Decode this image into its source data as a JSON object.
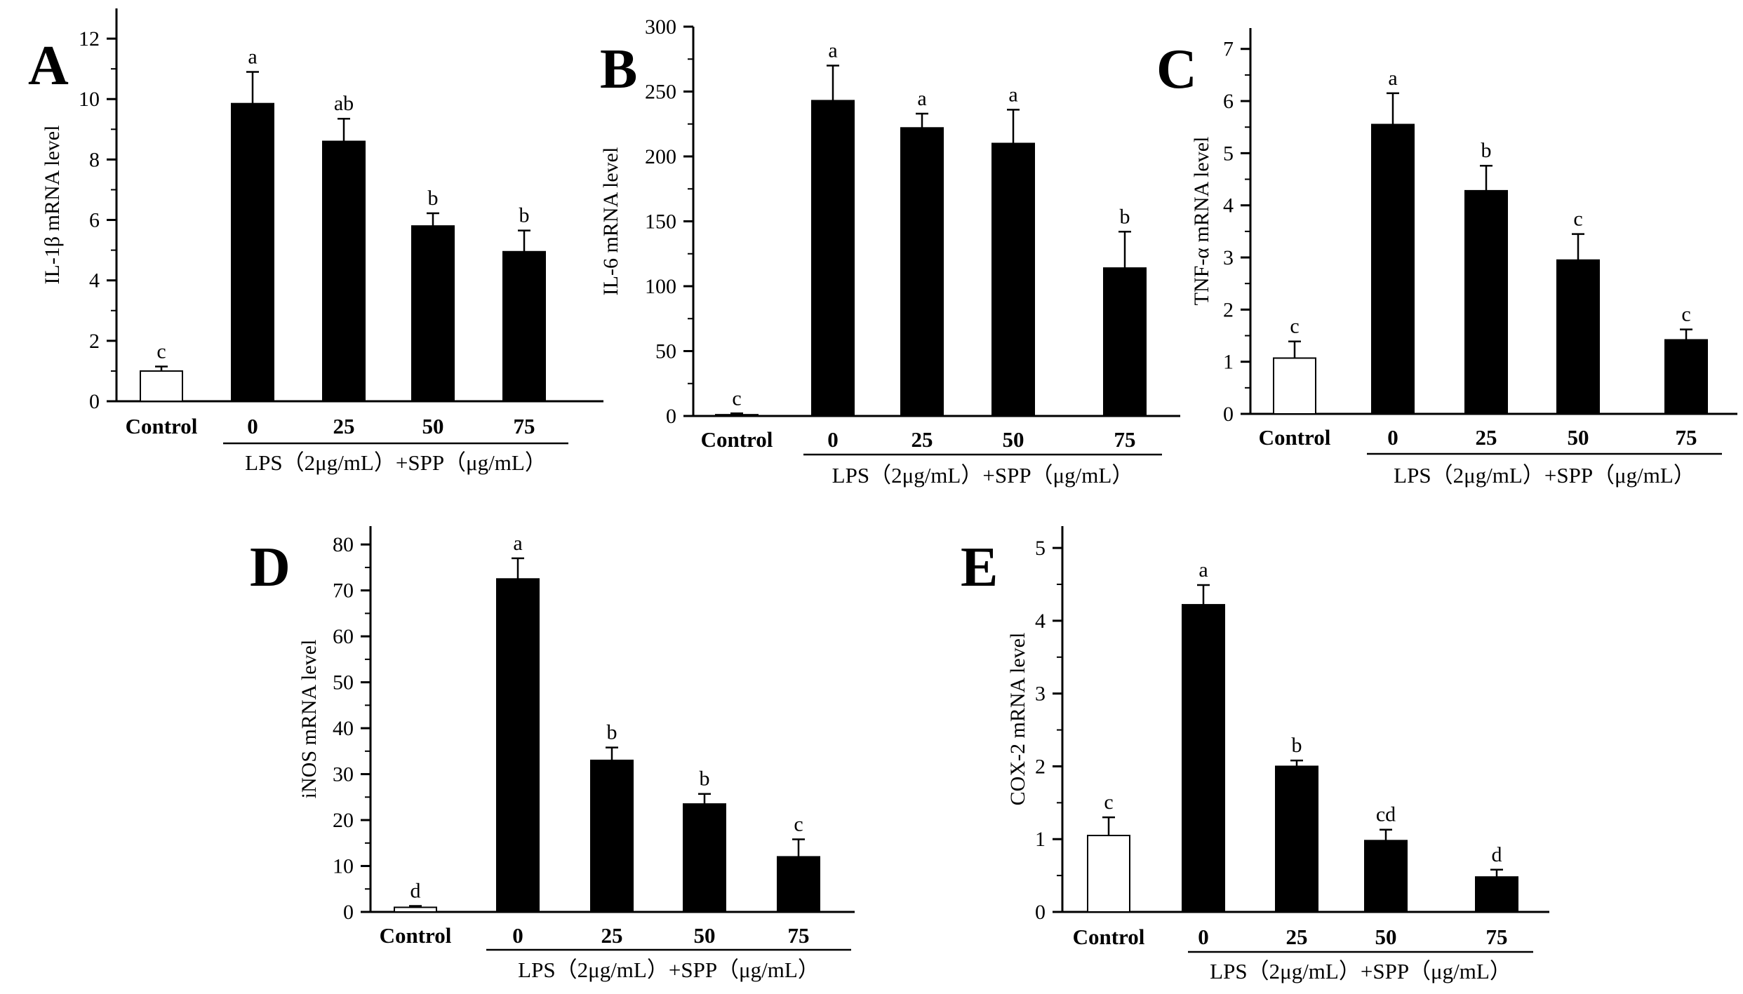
{
  "figure_labels": {
    "group_label": "LPS（2μg/mL）+SPP（μg/mL）"
  },
  "chart_data": [
    {
      "panel": "A",
      "type": "bar",
      "ylabel": "IL-1β mRNA level",
      "xlabel": "",
      "ylim": [
        0,
        13
      ],
      "yticks": [
        0,
        2,
        4,
        6,
        8,
        10,
        12
      ],
      "categories": [
        "Control",
        "0",
        "25",
        "50",
        "75"
      ],
      "values": [
        1.0,
        9.85,
        8.6,
        5.8,
        4.95
      ],
      "errors": [
        0.15,
        1.05,
        0.75,
        0.42,
        0.7
      ],
      "letters": [
        "c",
        "a",
        "ab",
        "b",
        "b"
      ],
      "fills": [
        "#ffffff",
        "#000000",
        "#000000",
        "#000000",
        "#000000"
      ],
      "group_label": "LPS（2μg/mL）+SPP（μg/mL）"
    },
    {
      "panel": "B",
      "type": "bar",
      "ylabel": "IL-6 mRNA level",
      "xlabel": "",
      "ylim": [
        0,
        300
      ],
      "yticks": [
        0,
        50,
        100,
        150,
        200,
        250,
        300
      ],
      "categories": [
        "Control",
        "0",
        "25",
        "50",
        "75"
      ],
      "values": [
        1.0,
        243,
        222,
        210,
        114
      ],
      "errors": [
        1.0,
        27,
        11,
        26,
        28
      ],
      "letters": [
        "c",
        "a",
        "a",
        "a",
        "b"
      ],
      "fills": [
        "#ffffff",
        "#000000",
        "#000000",
        "#000000",
        "#000000"
      ],
      "group_label": "LPS（2μg/mL）+SPP（μg/mL）"
    },
    {
      "panel": "C",
      "type": "bar",
      "ylabel": "TNF-α mRNA level",
      "xlabel": "",
      "ylim": [
        0,
        7.4
      ],
      "yticks": [
        0,
        1,
        2,
        3,
        4,
        5,
        6,
        7
      ],
      "categories": [
        "Control",
        "0",
        "25",
        "50",
        "75"
      ],
      "values": [
        1.07,
        5.55,
        4.28,
        2.95,
        1.42
      ],
      "errors": [
        0.32,
        0.6,
        0.48,
        0.5,
        0.2
      ],
      "letters": [
        "c",
        "a",
        "b",
        "c",
        "c"
      ],
      "fills": [
        "#ffffff",
        "#000000",
        "#000000",
        "#000000",
        "#000000"
      ],
      "group_label": "LPS（2μg/mL）+SPP（μg/mL）"
    },
    {
      "panel": "D",
      "type": "bar",
      "ylabel": "iNOS mRNA level",
      "xlabel": "",
      "ylim": [
        0,
        84
      ],
      "yticks": [
        0,
        10,
        20,
        30,
        40,
        50,
        60,
        70,
        80
      ],
      "categories": [
        "Control",
        "0",
        "25",
        "50",
        "75"
      ],
      "values": [
        1.0,
        72.5,
        33,
        23.5,
        12
      ],
      "errors": [
        0.3,
        4.5,
        2.8,
        2.2,
        3.8
      ],
      "letters": [
        "d",
        "a",
        "b",
        "b",
        "c"
      ],
      "fills": [
        "#ffffff",
        "#000000",
        "#000000",
        "#000000",
        "#000000"
      ],
      "group_label": "LPS（2μg/mL）+SPP（μg/mL）"
    },
    {
      "panel": "E",
      "type": "bar",
      "ylabel": "COX-2 mRNA level",
      "xlabel": "",
      "ylim": [
        0,
        5.3
      ],
      "yticks": [
        0,
        1,
        2,
        3,
        4,
        5
      ],
      "categories": [
        "Control",
        "0",
        "25",
        "50",
        "75"
      ],
      "values": [
        1.05,
        4.22,
        2.0,
        0.98,
        0.48
      ],
      "errors": [
        0.25,
        0.27,
        0.08,
        0.15,
        0.1
      ],
      "letters": [
        "c",
        "a",
        "b",
        "cd",
        "d"
      ],
      "fills": [
        "#ffffff",
        "#000000",
        "#000000",
        "#000000",
        "#000000"
      ],
      "group_label": "LPS（2μg/mL）+SPP（μg/mL）"
    }
  ]
}
